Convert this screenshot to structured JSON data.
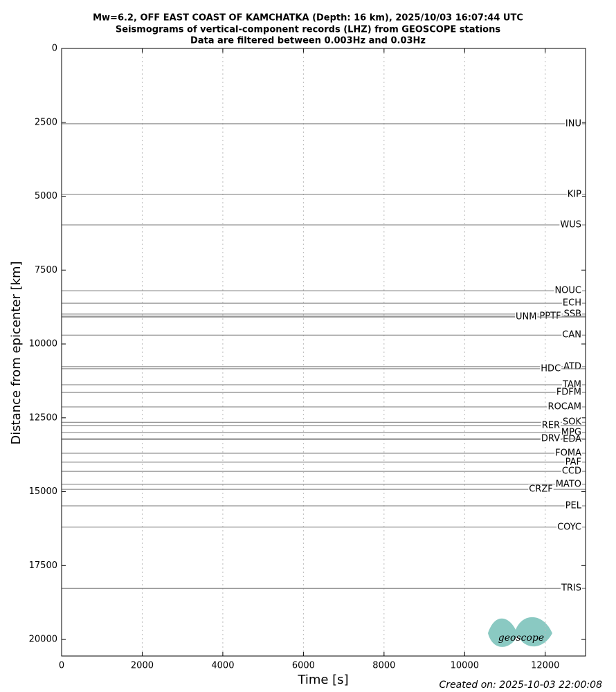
{
  "chart_data": {
    "type": "record-section",
    "title": [
      "Mw=6.2, OFF EAST COAST OF KAMCHATKA (Depth: 16 km), 2025/10/03 16:07:44 UTC",
      "Seismograms of vertical-component records (LHZ) from GEOSCOPE stations",
      "Data are filtered between 0.003Hz and 0.03Hz"
    ],
    "x_label": "Time [s]",
    "y_label": "Distance from epicenter [km]",
    "xlim": [
      0,
      13000
    ],
    "ylim": [
      0,
      20560
    ],
    "y_inverted": true,
    "xticks": [
      0,
      2000,
      4000,
      6000,
      8000,
      10000,
      12000
    ],
    "yticks": [
      0,
      2500,
      5000,
      7500,
      10000,
      12500,
      15000,
      17500,
      20000
    ],
    "grid_x": true,
    "color": "#777777",
    "stations": [
      "INU",
      "KIP",
      "WUS",
      "NOUC",
      "ECH",
      "SSB",
      "PPTF",
      "UNM",
      "CAN",
      "ATD",
      "HDC",
      "TAM",
      "FDFM",
      "ROCAM",
      "SOK",
      "RER",
      "MPG",
      "EDA",
      "DRV",
      "FOMA",
      "PAF",
      "CCD",
      "MATO",
      "CRZF",
      "PEL",
      "COYC",
      "TRIS"
    ],
    "distances": [
      2550,
      4940,
      5970,
      8200,
      8620,
      8990,
      9060,
      9090,
      9700,
      10770,
      10840,
      11380,
      11640,
      12130,
      12650,
      12760,
      13000,
      13230,
      13210,
      13700,
      14000,
      14310,
      14750,
      14920,
      15480,
      16200,
      18270
    ],
    "footer": "Created on: 2025-10-03 22:00:08",
    "logo": "geoscope"
  }
}
